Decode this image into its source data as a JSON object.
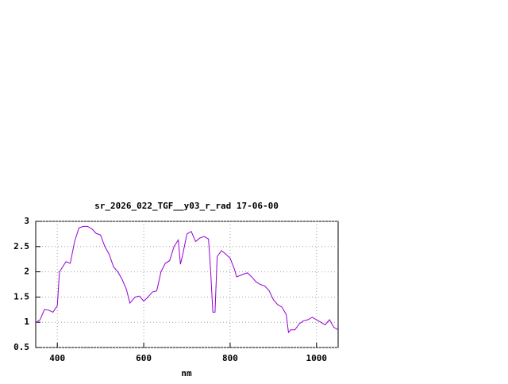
{
  "chart_data": {
    "type": "line",
    "title": "sr_2026_022_TGF__y03_r_rad 17-06-00",
    "x_label": "nm",
    "x": [
      350,
      360,
      370,
      380,
      390,
      400,
      405,
      420,
      430,
      440,
      450,
      460,
      470,
      480,
      490,
      500,
      510,
      520,
      530,
      540,
      550,
      560,
      568,
      580,
      590,
      600,
      610,
      620,
      630,
      640,
      650,
      660,
      670,
      680,
      685,
      690,
      700,
      710,
      720,
      730,
      740,
      750,
      755,
      760,
      765,
      770,
      780,
      790,
      800,
      810,
      815,
      830,
      840,
      850,
      860,
      870,
      880,
      890,
      900,
      910,
      920,
      930,
      935,
      940,
      950,
      960,
      970,
      980,
      990,
      1000,
      1010,
      1020,
      1030,
      1040,
      1050
    ],
    "series": [
      {
        "name": "sr_2026_022_TGF__y03_r_rad",
        "color": "#9400d3",
        "values": [
          0.99,
          1.05,
          1.25,
          1.24,
          1.2,
          1.33,
          2.0,
          2.2,
          2.17,
          2.6,
          2.87,
          2.9,
          2.9,
          2.85,
          2.76,
          2.73,
          2.5,
          2.35,
          2.1,
          2.0,
          1.85,
          1.65,
          1.38,
          1.5,
          1.52,
          1.42,
          1.5,
          1.6,
          1.62,
          2.0,
          2.17,
          2.22,
          2.5,
          2.63,
          2.15,
          2.33,
          2.75,
          2.8,
          2.6,
          2.67,
          2.7,
          2.65,
          2.0,
          1.2,
          1.2,
          2.3,
          2.42,
          2.35,
          2.27,
          2.05,
          1.9,
          1.95,
          1.98,
          1.9,
          1.8,
          1.75,
          1.72,
          1.63,
          1.45,
          1.35,
          1.3,
          1.15,
          0.8,
          0.85,
          0.85,
          0.97,
          1.03,
          1.05,
          1.1,
          1.05,
          1.0,
          0.95,
          1.05,
          0.9,
          0.85
        ]
      }
    ],
    "xlim": [
      350,
      1050
    ],
    "xticks": [
      400,
      600,
      800,
      1000
    ],
    "ylim": [
      0.5,
      3
    ],
    "yticks": [
      0.5,
      1,
      1.5,
      2,
      2.5,
      3
    ],
    "grid": true
  }
}
